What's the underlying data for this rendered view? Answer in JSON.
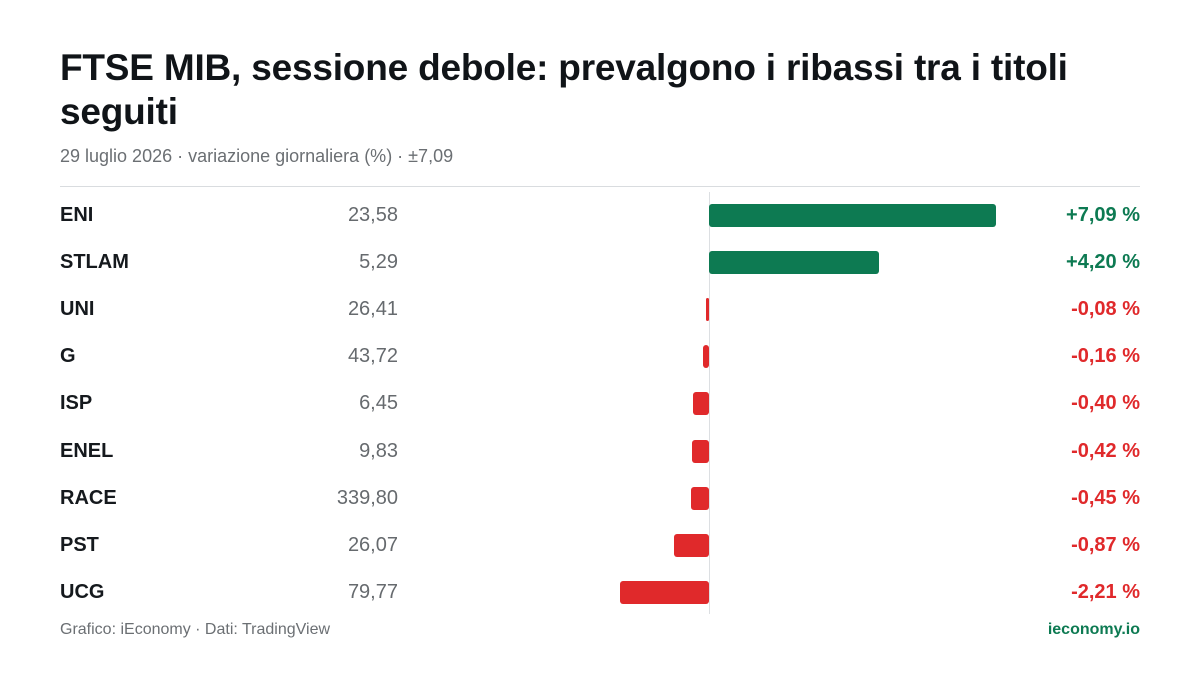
{
  "header": {
    "title": "FTSE MIB, sessione debole: prevalgono i ribassi tra i titoli seguiti",
    "subtitle": "29 luglio 2026 · variazione giornaliera (%) · ±7,09"
  },
  "footer": {
    "source": "Grafico: iEconomy · Dati: TradingView",
    "brand": "ieconomy.io"
  },
  "colors": {
    "positive": "#0d7a52",
    "negative": "#e0292b"
  },
  "chart_data": {
    "type": "bar",
    "orientation": "horizontal",
    "scale_max_abs": 7.09,
    "rows": [
      {
        "ticker": "ENI",
        "price": "23,58",
        "change": 7.09,
        "label": "+7,09 %"
      },
      {
        "ticker": "STLAM",
        "price": "5,29",
        "change": 4.2,
        "label": "+4,20 %"
      },
      {
        "ticker": "UNI",
        "price": "26,41",
        "change": -0.08,
        "label": "-0,08 %"
      },
      {
        "ticker": "G",
        "price": "43,72",
        "change": -0.16,
        "label": "-0,16 %"
      },
      {
        "ticker": "ISP",
        "price": "6,45",
        "change": -0.4,
        "label": "-0,40 %"
      },
      {
        "ticker": "ENEL",
        "price": "9,83",
        "change": -0.42,
        "label": "-0,42 %"
      },
      {
        "ticker": "RACE",
        "price": "339,80",
        "change": -0.45,
        "label": "-0,45 %"
      },
      {
        "ticker": "PST",
        "price": "26,07",
        "change": -0.87,
        "label": "-0,87 %"
      },
      {
        "ticker": "UCG",
        "price": "79,77",
        "change": -2.21,
        "label": "-2,21 %"
      }
    ]
  }
}
